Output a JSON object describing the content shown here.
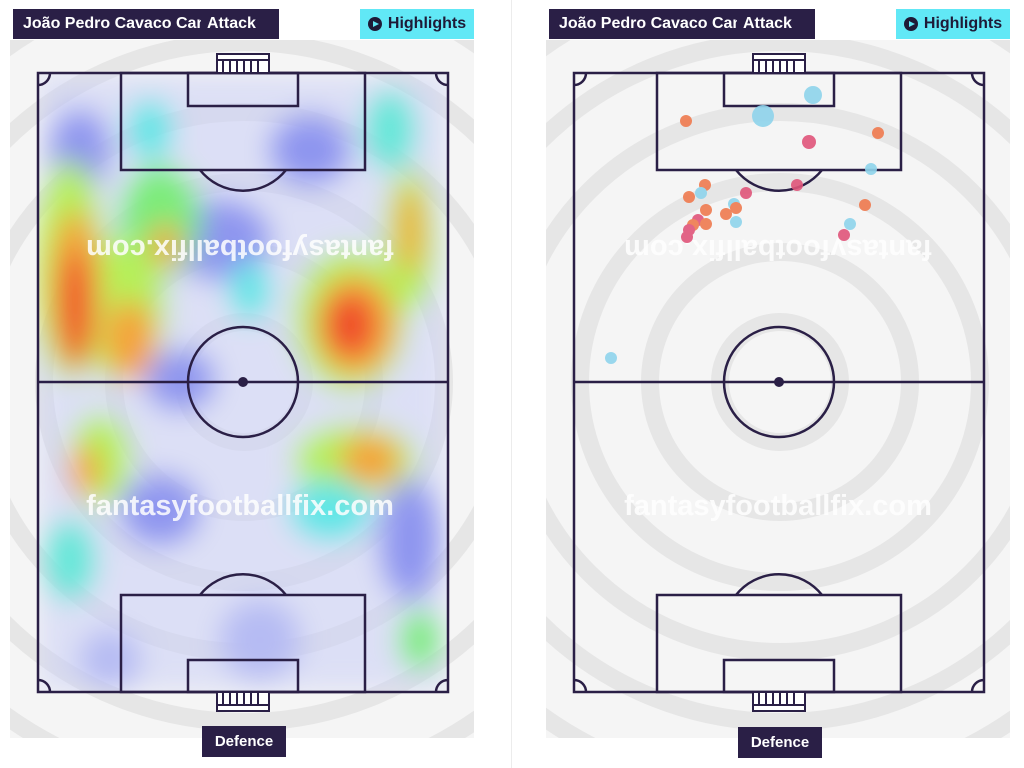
{
  "left_panel": {
    "player_name": "João Pedro Cavaco Cancelo",
    "mode_label": "Attack",
    "highlights_label": "Highlights",
    "bottom_label": "Defence",
    "watermark": "fantasyfootballfix.com"
  },
  "right_panel": {
    "player_name": "João Pedro Cavaco Cancelo",
    "mode_label": "Attack",
    "highlights_label": "Highlights",
    "bottom_label": "Defence",
    "watermark": "fantasyfootballfix.com"
  },
  "colors": {
    "dark_tag": "#2a1f46",
    "highlight_button": "#61e8f6",
    "pitch_line": "#2a1f46",
    "shot_orange": "#ef7a4f",
    "shot_pink": "#e0557a",
    "shot_blue": "#8fd4ec"
  },
  "icons": {
    "highlights": "play-circle-icon"
  }
}
